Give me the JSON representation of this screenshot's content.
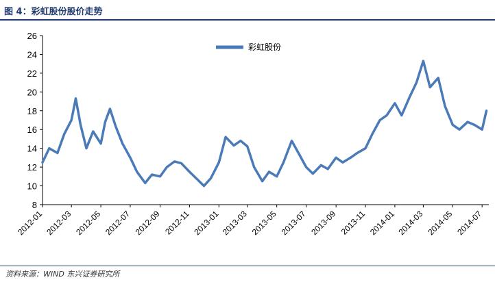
{
  "figure": {
    "title": "图 4：彩虹股份股价走势",
    "source": "资料来源：WIND 东兴证券研究所"
  },
  "colors": {
    "series": "#4a7ab8",
    "title": "#1f3a6e"
  },
  "chart_data": {
    "type": "line",
    "title": "",
    "xlabel": "",
    "ylabel": "",
    "ylim": [
      8,
      26
    ],
    "yticks": [
      8,
      10,
      12,
      14,
      16,
      18,
      20,
      22,
      24,
      26
    ],
    "xticks": [
      "2012-01",
      "2012-03",
      "2012-05",
      "2012-07",
      "2012-09",
      "2012-11",
      "2013-01",
      "2013-03",
      "2013-05",
      "2013-07",
      "2013-09",
      "2013-11",
      "2014-01",
      "2014-03",
      "2014-05",
      "2014-07"
    ],
    "legend": "top-center",
    "grid": false,
    "series": [
      {
        "name": "彩虹股份",
        "x": [
          "2012-01",
          "2012-01-15",
          "2012-02",
          "2012-02-15",
          "2012-03",
          "2012-03-10",
          "2012-03-20",
          "2012-04",
          "2012-04-15",
          "2012-05",
          "2012-05-10",
          "2012-05-20",
          "2012-06",
          "2012-06-15",
          "2012-07",
          "2012-07-15",
          "2012-08",
          "2012-08-15",
          "2012-09",
          "2012-09-15",
          "2012-10",
          "2012-10-15",
          "2012-11",
          "2012-11-15",
          "2012-12",
          "2012-12-15",
          "2013-01",
          "2013-01-15",
          "2013-02",
          "2013-02-15",
          "2013-03",
          "2013-03-15",
          "2013-04",
          "2013-04-15",
          "2013-05",
          "2013-05-15",
          "2013-06",
          "2013-06-15",
          "2013-07",
          "2013-07-15",
          "2013-08",
          "2013-08-15",
          "2013-09",
          "2013-09-15",
          "2013-10",
          "2013-10-15",
          "2013-11",
          "2013-11-15",
          "2013-12",
          "2013-12-15",
          "2014-01",
          "2014-01-15",
          "2014-02",
          "2014-02-15",
          "2014-03",
          "2014-03-15",
          "2014-04",
          "2014-04-15",
          "2014-05",
          "2014-05-15",
          "2014-06",
          "2014-06-15",
          "2014-07",
          "2014-07-10"
        ],
        "values": [
          12.5,
          14.0,
          13.5,
          15.5,
          17.0,
          19.3,
          16.5,
          14.0,
          15.8,
          14.5,
          16.8,
          18.2,
          16.3,
          14.5,
          13.0,
          11.5,
          10.3,
          11.2,
          11.0,
          12.0,
          12.6,
          12.4,
          11.5,
          10.8,
          10.0,
          10.8,
          12.5,
          15.2,
          14.3,
          14.8,
          14.2,
          12.0,
          10.5,
          11.5,
          11.0,
          12.5,
          14.8,
          13.5,
          12.0,
          11.3,
          12.2,
          11.8,
          13.0,
          12.5,
          13.0,
          13.5,
          14.0,
          15.5,
          17.0,
          17.5,
          18.8,
          17.5,
          19.5,
          21.0,
          23.3,
          20.5,
          21.5,
          18.5,
          16.5,
          16.0,
          16.8,
          16.5,
          16.0,
          18.0
        ]
      }
    ]
  }
}
